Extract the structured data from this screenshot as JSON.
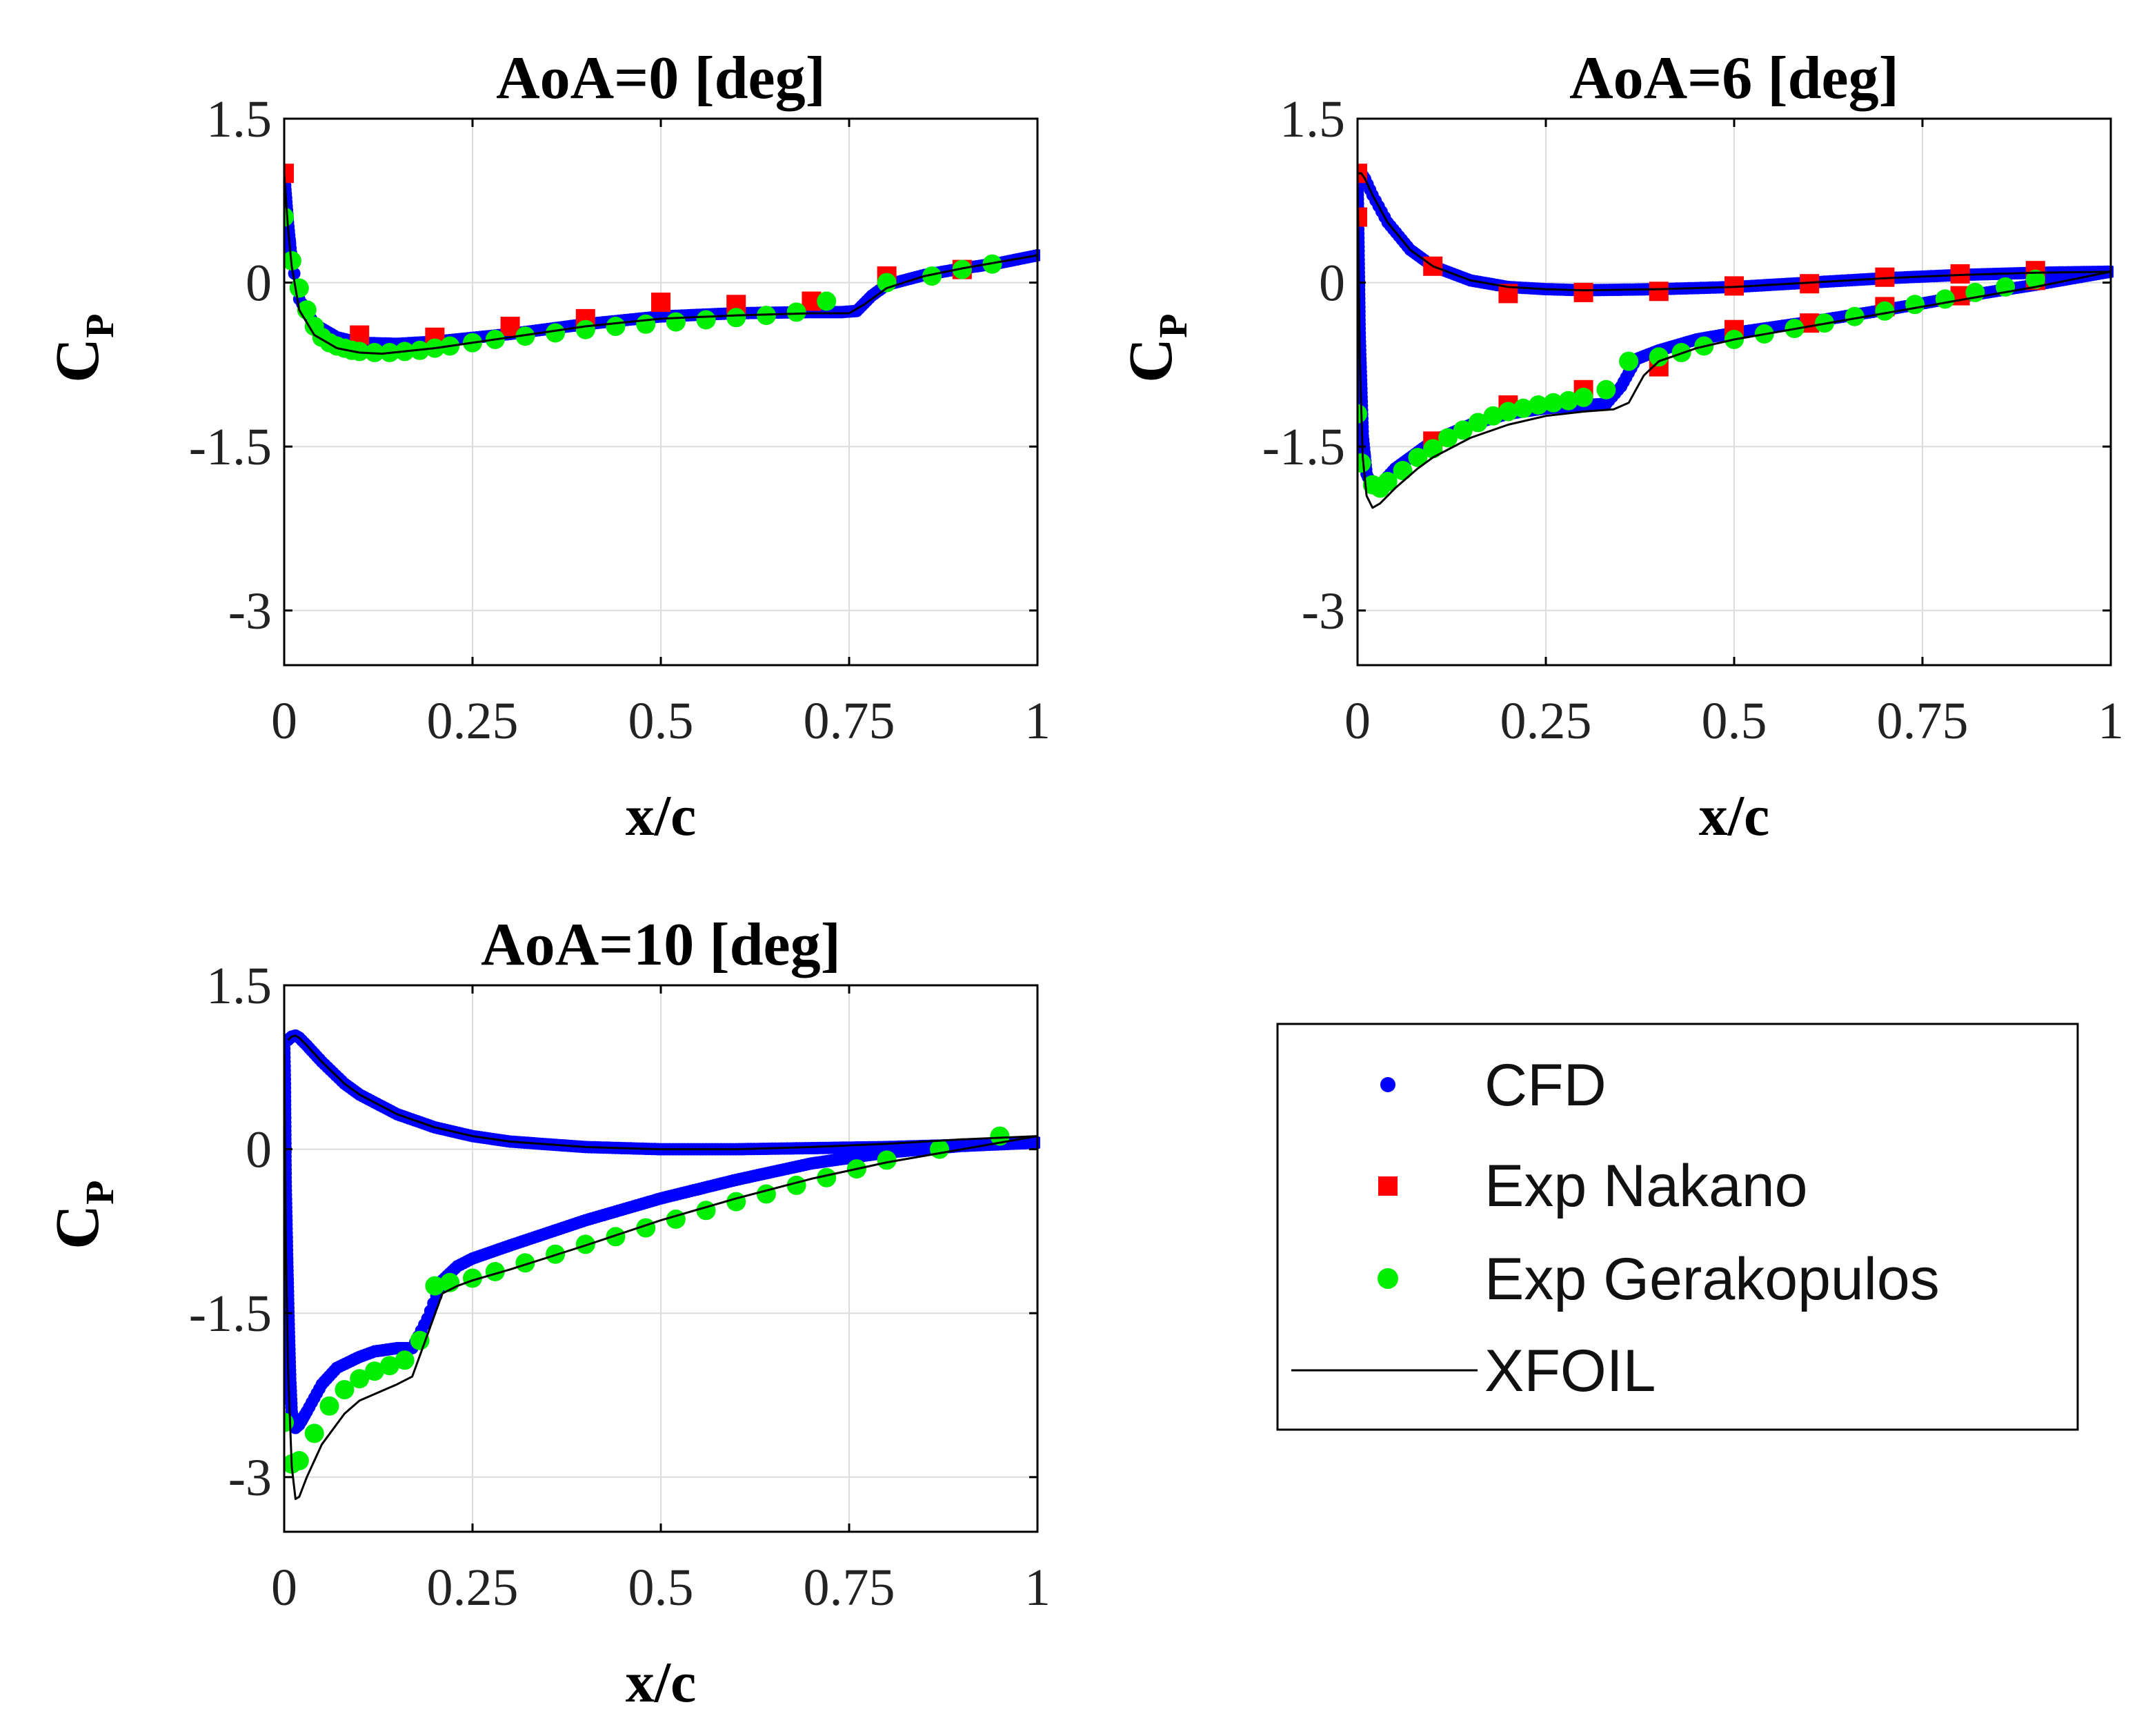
{
  "chart_data": [
    {
      "type": "line",
      "title": "AoA=0 [deg]",
      "xlabel": "x/c",
      "ylabel": "C",
      "ylabel_sub": "P",
      "xlim": [
        0,
        1
      ],
      "ylim": [
        -3.5,
        1.5
      ],
      "xticks": [
        0,
        0.25,
        0.5,
        0.75,
        1
      ],
      "xtick_labels": [
        "0",
        "0.25",
        "0.5",
        "0.75",
        "1"
      ],
      "yticks": [
        1.5,
        0,
        -1.5,
        -3
      ],
      "ytick_labels": [
        "1.5",
        "0",
        "-1.5",
        "-3"
      ],
      "grid": true,
      "series": [
        {
          "name": "CFD",
          "style": "dots",
          "color": "#0000ff",
          "branches": [
            {
              "x": [
                0,
                0.005,
                0.01,
                0.02,
                0.04,
                0.07,
                0.1,
                0.15,
                0.2,
                0.3,
                0.4,
                0.5,
                0.6,
                0.7,
                0.74,
                0.76,
                0.78,
                0.8,
                0.85,
                0.9,
                0.95,
                1.0
              ],
              "y": [
                1.0,
                0.55,
                0.2,
                -0.15,
                -0.38,
                -0.5,
                -0.55,
                -0.56,
                -0.54,
                -0.47,
                -0.38,
                -0.31,
                -0.28,
                -0.27,
                -0.27,
                -0.26,
                -0.12,
                -0.02,
                0.07,
                0.13,
                0.18,
                0.25
              ]
            }
          ]
        },
        {
          "name": "Exp Nakano",
          "style": "squares",
          "color": "#ff0000",
          "x": [
            0,
            0.1,
            0.2,
            0.3,
            0.4,
            0.5,
            0.6,
            0.7,
            0.8,
            0.9
          ],
          "y": [
            1.0,
            -0.48,
            -0.5,
            -0.4,
            -0.33,
            -0.18,
            -0.2,
            -0.17,
            0.06,
            0.12
          ]
        },
        {
          "name": "Exp Gerakopulos",
          "style": "circles",
          "color": "#00ee00",
          "x": [
            0,
            0.01,
            0.02,
            0.03,
            0.04,
            0.05,
            0.06,
            0.07,
            0.08,
            0.09,
            0.1,
            0.12,
            0.14,
            0.16,
            0.18,
            0.2,
            0.22,
            0.25,
            0.28,
            0.32,
            0.36,
            0.4,
            0.44,
            0.48,
            0.52,
            0.56,
            0.6,
            0.64,
            0.68,
            0.72,
            0.8,
            0.86,
            0.9,
            0.94
          ],
          "y": [
            0.6,
            0.2,
            -0.05,
            -0.25,
            -0.4,
            -0.5,
            -0.55,
            -0.58,
            -0.6,
            -0.62,
            -0.63,
            -0.64,
            -0.64,
            -0.63,
            -0.62,
            -0.6,
            -0.58,
            -0.55,
            -0.52,
            -0.49,
            -0.46,
            -0.43,
            -0.4,
            -0.38,
            -0.36,
            -0.34,
            -0.32,
            -0.3,
            -0.27,
            -0.17,
            0.0,
            0.06,
            0.12,
            0.17
          ]
        },
        {
          "name": "XFOIL",
          "style": "line",
          "color": "#000000",
          "branches": [
            {
              "x": [
                0,
                0.005,
                0.01,
                0.02,
                0.04,
                0.07,
                0.1,
                0.13,
                0.2,
                0.3,
                0.4,
                0.5,
                0.6,
                0.7,
                0.75,
                0.77,
                0.8,
                0.85,
                0.9,
                0.95,
                1.0
              ],
              "y": [
                1.0,
                0.5,
                0.15,
                -0.25,
                -0.48,
                -0.6,
                -0.64,
                -0.65,
                -0.6,
                -0.5,
                -0.4,
                -0.33,
                -0.3,
                -0.28,
                -0.28,
                -0.2,
                -0.05,
                0.06,
                0.13,
                0.19,
                0.25
              ]
            }
          ]
        }
      ]
    },
    {
      "type": "line",
      "title": "AoA=6 [deg]",
      "xlabel": "x/c",
      "ylabel": "C",
      "ylabel_sub": "P",
      "xlim": [
        0,
        1
      ],
      "ylim": [
        -3.5,
        1.5
      ],
      "xticks": [
        0,
        0.25,
        0.5,
        0.75,
        1
      ],
      "xtick_labels": [
        "0",
        "0.25",
        "0.5",
        "0.75",
        "1"
      ],
      "yticks": [
        1.5,
        0,
        -1.5,
        -3
      ],
      "ytick_labels": [
        "1.5",
        "0",
        "-1.5",
        "-3"
      ],
      "grid": true,
      "series": [
        {
          "name": "CFD",
          "style": "dots",
          "color": "#0000ff",
          "branches": [
            {
              "x": [
                0,
                0.005,
                0.01,
                0.02,
                0.04,
                0.07,
                0.1,
                0.15,
                0.2,
                0.25,
                0.3,
                0.4,
                0.5,
                0.6,
                0.7,
                0.8,
                0.9,
                1.0
              ],
              "y": [
                1.0,
                1.0,
                0.95,
                0.8,
                0.55,
                0.3,
                0.15,
                0.02,
                -0.04,
                -0.06,
                -0.07,
                -0.06,
                -0.04,
                0.0,
                0.04,
                0.07,
                0.09,
                0.1
              ]
            },
            {
              "x": [
                0,
                0.003,
                0.007,
                0.012,
                0.02,
                0.03,
                0.05,
                0.08,
                0.1,
                0.15,
                0.2,
                0.25,
                0.3,
                0.33,
                0.35,
                0.37,
                0.4,
                0.45,
                0.5,
                0.6,
                0.7,
                0.8,
                0.9,
                1.0
              ],
              "y": [
                1.0,
                -0.5,
                -1.4,
                -1.75,
                -1.88,
                -1.85,
                -1.7,
                -1.55,
                -1.45,
                -1.3,
                -1.2,
                -1.15,
                -1.12,
                -1.11,
                -0.95,
                -0.7,
                -0.62,
                -0.52,
                -0.46,
                -0.36,
                -0.25,
                -0.13,
                -0.02,
                0.1
              ]
            }
          ]
        },
        {
          "name": "Exp Nakano",
          "style": "squares",
          "color": "#ff0000",
          "x": [
            0,
            0,
            0.1,
            0.2,
            0.3,
            0.4,
            0.5,
            0.6,
            0.7,
            0.8,
            0.9,
            0.1,
            0.2,
            0.3,
            0.4,
            0.5,
            0.6,
            0.7,
            0.8,
            0.9
          ],
          "y": [
            1.0,
            0.6,
            0.15,
            -0.1,
            -0.09,
            -0.08,
            -0.03,
            -0.01,
            0.05,
            0.08,
            0.11,
            -1.45,
            -1.12,
            -0.98,
            -0.77,
            -0.43,
            -0.37,
            -0.22,
            -0.12,
            0.02
          ]
        },
        {
          "name": "Exp Gerakopulos",
          "style": "circles",
          "color": "#00ee00",
          "x": [
            0,
            0.005,
            0.02,
            0.03,
            0.04,
            0.06,
            0.08,
            0.1,
            0.12,
            0.14,
            0.16,
            0.18,
            0.2,
            0.22,
            0.24,
            0.26,
            0.28,
            0.3,
            0.33,
            0.36,
            0.4,
            0.43,
            0.46,
            0.5,
            0.54,
            0.58,
            0.62,
            0.66,
            0.7,
            0.74,
            0.78,
            0.82,
            0.86,
            0.9
          ],
          "y": [
            -1.2,
            -1.65,
            -1.85,
            -1.88,
            -1.82,
            -1.72,
            -1.6,
            -1.52,
            -1.42,
            -1.35,
            -1.28,
            -1.22,
            -1.18,
            -1.15,
            -1.12,
            -1.1,
            -1.08,
            -1.05,
            -0.98,
            -0.72,
            -0.68,
            -0.64,
            -0.58,
            -0.52,
            -0.47,
            -0.42,
            -0.37,
            -0.31,
            -0.26,
            -0.2,
            -0.15,
            -0.09,
            -0.04,
            0.03
          ]
        },
        {
          "name": "XFOIL",
          "style": "line",
          "color": "#000000",
          "branches": [
            {
              "x": [
                0,
                0.005,
                0.01,
                0.02,
                0.04,
                0.07,
                0.1,
                0.15,
                0.2,
                0.25,
                0.3,
                0.4,
                0.5,
                0.6,
                0.7,
                0.8,
                0.9,
                1.0
              ],
              "y": [
                1.0,
                1.0,
                0.95,
                0.8,
                0.55,
                0.3,
                0.15,
                0.02,
                -0.04,
                -0.06,
                -0.07,
                -0.06,
                -0.04,
                0.0,
                0.04,
                0.07,
                0.09,
                0.1
              ]
            },
            {
              "x": [
                0,
                0.003,
                0.007,
                0.012,
                0.02,
                0.03,
                0.05,
                0.08,
                0.1,
                0.15,
                0.2,
                0.25,
                0.3,
                0.34,
                0.36,
                0.38,
                0.4,
                0.45,
                0.5,
                0.6,
                0.7,
                0.8,
                0.9,
                1.0
              ],
              "y": [
                1.0,
                -0.7,
                -1.6,
                -1.95,
                -2.06,
                -2.02,
                -1.88,
                -1.7,
                -1.6,
                -1.42,
                -1.3,
                -1.22,
                -1.18,
                -1.16,
                -1.1,
                -0.85,
                -0.72,
                -0.6,
                -0.52,
                -0.4,
                -0.28,
                -0.16,
                -0.04,
                0.1
              ]
            }
          ]
        }
      ]
    },
    {
      "type": "line",
      "title": "AoA=10 [deg]",
      "xlabel": "x/c",
      "ylabel": "C",
      "ylabel_sub": "P",
      "xlim": [
        0,
        1
      ],
      "ylim": [
        -3.5,
        1.5
      ],
      "xticks": [
        0,
        0.25,
        0.5,
        0.75,
        1
      ],
      "xtick_labels": [
        "0",
        "0.25",
        "0.5",
        "0.75",
        "1"
      ],
      "yticks": [
        1.5,
        0,
        -1.5,
        -3
      ],
      "ytick_labels": [
        "1.5",
        "0",
        "-1.5",
        "-3"
      ],
      "grid": true,
      "series": [
        {
          "name": "CFD",
          "style": "dots",
          "color": "#0000ff",
          "branches": [
            {
              "x": [
                0.005,
                0.01,
                0.015,
                0.02,
                0.03,
                0.05,
                0.08,
                0.1,
                0.15,
                0.2,
                0.25,
                0.3,
                0.4,
                0.5,
                0.6,
                0.7,
                0.8,
                0.9,
                1.0
              ],
              "y": [
                1.0,
                1.03,
                1.04,
                1.02,
                0.95,
                0.8,
                0.6,
                0.5,
                0.32,
                0.2,
                0.12,
                0.07,
                0.02,
                0.0,
                0.0,
                0.01,
                0.02,
                0.04,
                0.06
              ]
            },
            {
              "x": [
                0.0,
                0.001,
                0.002,
                0.004,
                0.006,
                0.008,
                0.01,
                0.015,
                0.02,
                0.03,
                0.05,
                0.07,
                0.1,
                0.12,
                0.15,
                0.17,
                0.19,
                0.21,
                0.23,
                0.25,
                0.3,
                0.4,
                0.5,
                0.6,
                0.7,
                0.8,
                0.9,
                1.0
              ],
              "y": [
                1.0,
                0.6,
                -0.3,
                -1.0,
                -1.6,
                -2.1,
                -2.4,
                -2.55,
                -2.52,
                -2.4,
                -2.15,
                -2.0,
                -1.9,
                -1.85,
                -1.82,
                -1.82,
                -1.55,
                -1.2,
                -1.07,
                -1.0,
                -0.88,
                -0.65,
                -0.45,
                -0.28,
                -0.13,
                -0.03,
                0.03,
                0.06
              ]
            }
          ]
        },
        {
          "name": "Exp Gerakopulos",
          "style": "circles",
          "color": "#00ee00",
          "x": [
            0.0,
            0.01,
            0.02,
            0.04,
            0.06,
            0.08,
            0.1,
            0.12,
            0.14,
            0.16,
            0.18,
            0.2,
            0.22,
            0.25,
            0.28,
            0.32,
            0.36,
            0.4,
            0.44,
            0.48,
            0.52,
            0.56,
            0.6,
            0.64,
            0.68,
            0.72,
            0.76,
            0.8,
            0.87,
            0.95
          ],
          "y": [
            -2.5,
            -2.88,
            -2.85,
            -2.6,
            -2.35,
            -2.2,
            -2.1,
            -2.03,
            -1.98,
            -1.93,
            -1.75,
            -1.25,
            -1.22,
            -1.18,
            -1.12,
            -1.04,
            -0.96,
            -0.87,
            -0.8,
            -0.72,
            -0.64,
            -0.56,
            -0.48,
            -0.41,
            -0.33,
            -0.26,
            -0.18,
            -0.1,
            0.0,
            0.12
          ]
        },
        {
          "name": "XFOIL",
          "style": "line",
          "color": "#000000",
          "branches": [
            {
              "x": [
                0.005,
                0.01,
                0.015,
                0.02,
                0.03,
                0.05,
                0.08,
                0.1,
                0.15,
                0.2,
                0.25,
                0.3,
                0.4,
                0.5,
                0.6,
                0.7,
                0.8,
                0.9,
                1.0
              ],
              "y": [
                1.0,
                1.03,
                1.04,
                1.02,
                0.95,
                0.8,
                0.6,
                0.5,
                0.32,
                0.2,
                0.12,
                0.07,
                0.02,
                0.0,
                0.0,
                0.02,
                0.05,
                0.09,
                0.12
              ]
            },
            {
              "x": [
                0.0,
                0.002,
                0.005,
                0.01,
                0.015,
                0.02,
                0.03,
                0.05,
                0.08,
                0.1,
                0.15,
                0.17,
                0.19,
                0.21,
                0.23,
                0.25,
                0.3,
                0.4,
                0.5,
                0.6,
                0.7,
                0.8,
                0.9,
                1.0
              ],
              "y": [
                1.0,
                -0.8,
                -2.0,
                -2.9,
                -3.2,
                -3.18,
                -3.0,
                -2.7,
                -2.42,
                -2.3,
                -2.15,
                -2.08,
                -1.7,
                -1.32,
                -1.25,
                -1.2,
                -1.1,
                -0.88,
                -0.65,
                -0.45,
                -0.27,
                -0.12,
                0.0,
                0.12
              ]
            }
          ]
        }
      ]
    }
  ],
  "legend": {
    "items": [
      {
        "label": "CFD",
        "marker": "dot",
        "color": "#0000ff"
      },
      {
        "label": "Exp Nakano",
        "marker": "square",
        "color": "#ff0000"
      },
      {
        "label": "Exp Gerakopulos",
        "marker": "circle",
        "color": "#00ee00"
      },
      {
        "label": "XFOIL",
        "marker": "line",
        "color": "#000000"
      }
    ]
  }
}
